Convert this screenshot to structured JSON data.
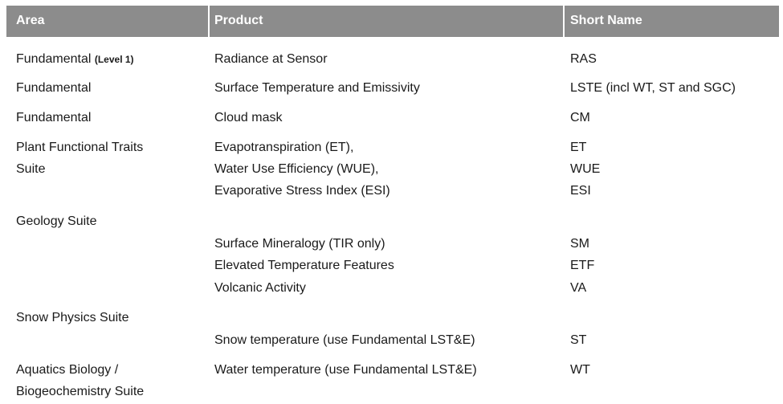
{
  "headers": {
    "area": "Area",
    "product": "Product",
    "short_name": "Short Name"
  },
  "rows": [
    {
      "area": "Fundamental",
      "area_note": "(Level 1)",
      "product": "Radiance at Sensor",
      "short": "RAS"
    },
    {
      "area": "Fundamental",
      "product": "Surface Temperature and Emissivity",
      "short": "LSTE (incl WT, ST and SGC)"
    },
    {
      "area": "Fundamental",
      "product": "Cloud mask",
      "short": "CM"
    },
    {
      "area_lines": [
        "Plant Functional Traits",
        "Suite"
      ],
      "products": [
        "Evapotranspiration (ET),",
        "Water Use Efficiency (WUE),",
        "Evaporative Stress Index (ESI)"
      ],
      "shorts": [
        "ET",
        "WUE",
        "ESI"
      ]
    },
    {
      "area": "Geology Suite",
      "products": [
        "Surface Mineralogy (TIR only)",
        "Elevated Temperature Features",
        "Volcanic Activity"
      ],
      "shorts": [
        "SM",
        "ETF",
        "VA"
      ]
    },
    {
      "area": "Snow Physics Suite",
      "product": "Snow temperature (use Fundamental LST&E)",
      "short": "ST"
    },
    {
      "area_lines": [
        "Aquatics Biology /",
        "Biogeochemistry Suite"
      ],
      "product": "Water temperature (use Fundamental LST&E)",
      "short": "WT"
    }
  ]
}
